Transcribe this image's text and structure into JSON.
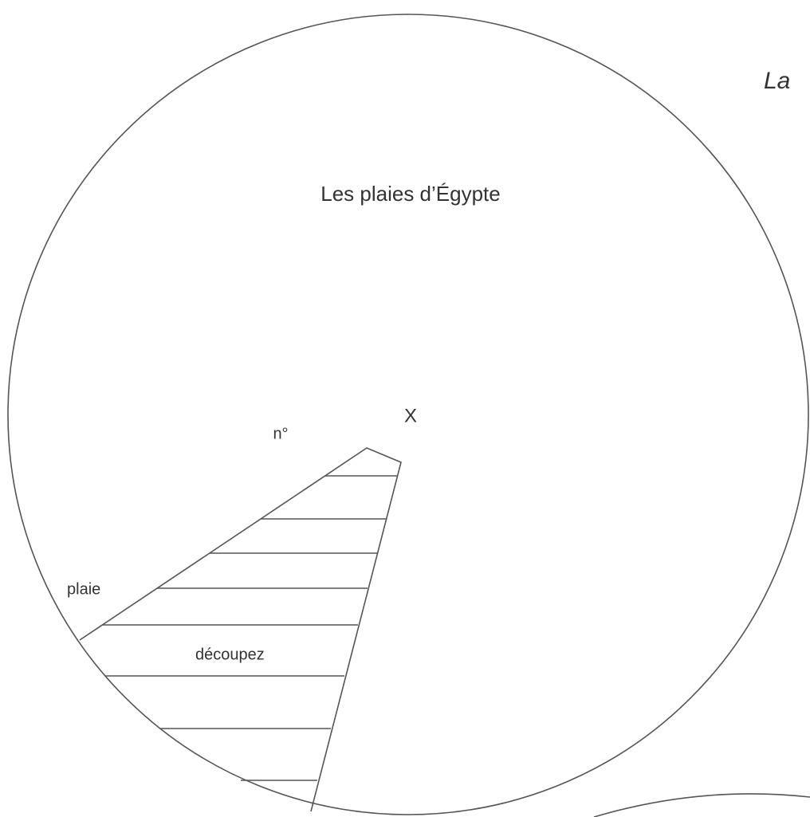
{
  "header": {
    "corner": "La",
    "title": "Les plaies d’Égypte"
  },
  "wheel": {
    "marker": "X",
    "number_label": "n°",
    "sector_label": "plaie",
    "cut_label": "découpez"
  }
}
